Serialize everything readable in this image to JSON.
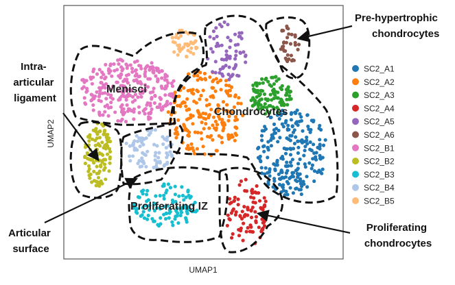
{
  "chart_data": {
    "type": "scatter",
    "xlabel": "UMAP1",
    "ylabel": "UMAP2",
    "xlim": [
      0,
      100
    ],
    "ylim": [
      0,
      100
    ],
    "grid": false,
    "legend_position": "right",
    "series": [
      {
        "name": "SC2_A1",
        "color": "#1f77b4",
        "cx": 83,
        "cy": 42,
        "rx": 13,
        "ry": 18,
        "n": 240
      },
      {
        "name": "SC2_A2",
        "color": "#ff7f0e",
        "cx": 51,
        "cy": 58,
        "rx": 14,
        "ry": 18,
        "n": 200
      },
      {
        "name": "SC2_A3",
        "color": "#2ca02c",
        "cx": 75,
        "cy": 65,
        "rx": 8,
        "ry": 8,
        "n": 110
      },
      {
        "name": "SC2_A4",
        "color": "#d62728",
        "cx": 66,
        "cy": 17,
        "rx": 8,
        "ry": 14,
        "n": 90
      },
      {
        "name": "SC2_A5",
        "color": "#9467bd",
        "cx": 59,
        "cy": 83,
        "rx": 8,
        "ry": 12,
        "n": 70
      },
      {
        "name": "SC2_A6",
        "color": "#8c564b",
        "cx": 82,
        "cy": 86,
        "rx": 4,
        "ry": 8,
        "n": 35
      },
      {
        "name": "SC2_B1",
        "color": "#e377c2",
        "cx": 22,
        "cy": 67,
        "rx": 18,
        "ry": 13,
        "n": 280
      },
      {
        "name": "SC2_B2",
        "color": "#bcbd22",
        "cx": 11,
        "cy": 41,
        "rx": 5,
        "ry": 13,
        "n": 110
      },
      {
        "name": "SC2_B3",
        "color": "#17becf",
        "cx": 36,
        "cy": 20,
        "rx": 12,
        "ry": 9,
        "n": 110
      },
      {
        "name": "SC2_B4",
        "color": "#aec7e8",
        "cx": 30,
        "cy": 43,
        "rx": 9,
        "ry": 9,
        "n": 80
      },
      {
        "name": "SC2_B5",
        "color": "#ffbb78",
        "cx": 43,
        "cy": 86,
        "rx": 5,
        "ry": 6,
        "n": 45
      }
    ],
    "regions": [
      {
        "label": "Menisci"
      },
      {
        "label": "Chondrocytes"
      },
      {
        "label": "Proliferating IZ"
      }
    ],
    "callouts": [
      {
        "lines": [
          "Pre-hypertrophic",
          "chondrocytes"
        ]
      },
      {
        "lines": [
          "Intra-",
          "articular",
          "ligament"
        ]
      },
      {
        "lines": [
          "Articular",
          "surface"
        ]
      },
      {
        "lines": [
          "Proliferating",
          "chondrocytes"
        ]
      }
    ]
  }
}
